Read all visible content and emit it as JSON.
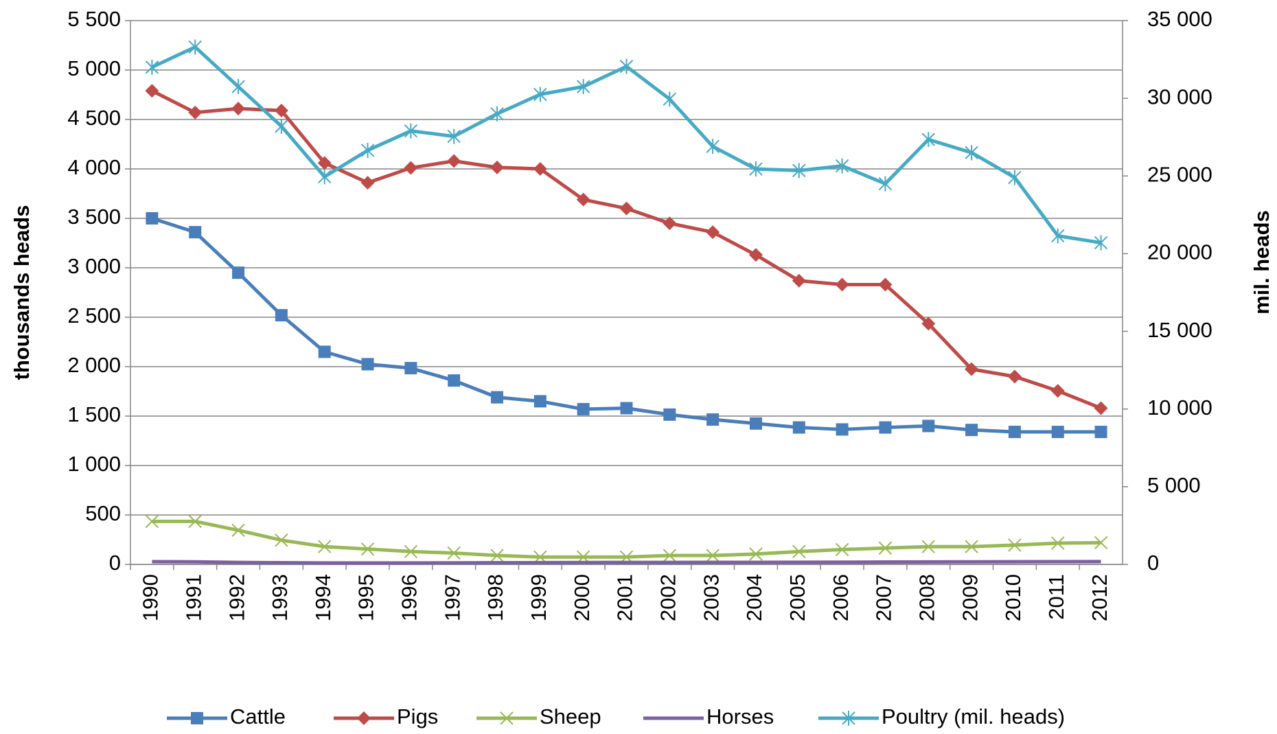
{
  "chart_data": {
    "type": "line",
    "categories": [
      "1990",
      "1991",
      "1992",
      "1993",
      "1994",
      "1995",
      "1996",
      "1997",
      "1998",
      "1999",
      "2000",
      "2001",
      "2002",
      "2003",
      "2004",
      "2005",
      "2006",
      "2007",
      "2008",
      "2009",
      "2010",
      "2011",
      "2012"
    ],
    "ylabel": "thousands heads",
    "y2label": "mil. heads",
    "ylim": [
      0,
      5500
    ],
    "yticks": [
      0,
      500,
      {
        "value": 1000,
        "label": "1 000"
      },
      {
        "value": 1500,
        "label": "1 500"
      },
      {
        "value": 2000,
        "label": "2 000"
      },
      {
        "value": 2500,
        "label": "2 500"
      },
      {
        "value": 3000,
        "label": "3 000"
      },
      {
        "value": 3500,
        "label": "3 500"
      },
      {
        "value": 4000,
        "label": "4 000"
      },
      {
        "value": 4500,
        "label": "4 500"
      },
      {
        "value": 5000,
        "label": "5 000"
      },
      {
        "value": 5500,
        "label": "5 500"
      }
    ],
    "y2lim": [
      0,
      35000
    ],
    "y2ticks": [
      0,
      {
        "value": 5000,
        "label": "5 000"
      },
      {
        "value": 10000,
        "label": "10 000"
      },
      {
        "value": 15000,
        "label": "15 000"
      },
      {
        "value": 20000,
        "label": "20 000"
      },
      {
        "value": 25000,
        "label": "25 000"
      },
      {
        "value": 30000,
        "label": "30 000"
      },
      {
        "value": 35000,
        "label": "35 000"
      }
    ],
    "grid": true,
    "legend": "bottom",
    "series": [
      {
        "name": "Cattle",
        "color": "#4a7ebb",
        "marker": "square",
        "values": [
          3500,
          3360,
          2950,
          2520,
          2150,
          2025,
          1985,
          1860,
          1690,
          1650,
          1570,
          1580,
          1515,
          1465,
          1425,
          1385,
          1365,
          1385,
          1400,
          1360,
          1340,
          1340,
          1340
        ]
      },
      {
        "name": "Pigs",
        "color": "#be4b48",
        "marker": "diamond",
        "values": [
          4790,
          4570,
          4610,
          4590,
          4060,
          3860,
          4010,
          4080,
          4015,
          4000,
          3690,
          3600,
          3450,
          3360,
          3130,
          2870,
          2830,
          2830,
          2435,
          1975,
          1900,
          1755,
          1580
        ]
      },
      {
        "name": "Sheep",
        "color": "#98b954",
        "marker": "x",
        "values": [
          435,
          435,
          345,
          245,
          180,
          155,
          130,
          115,
          90,
          75,
          75,
          75,
          90,
          90,
          105,
          130,
          150,
          165,
          180,
          180,
          195,
          215,
          220
        ]
      },
      {
        "name": "Horses",
        "color": "#7d60a0",
        "marker": "none",
        "values": [
          28,
          26,
          20,
          17,
          15,
          15,
          15,
          16,
          17,
          18,
          19,
          20,
          20,
          21,
          21,
          22,
          23,
          24,
          25,
          26,
          27,
          28,
          29
        ]
      },
      {
        "name": "Poultry (mil. heads)",
        "color": "#46aac5",
        "marker": "asterisk",
        "axis": "y2",
        "values": [
          32000,
          33300,
          30750,
          28200,
          24950,
          26650,
          27900,
          27550,
          29000,
          30250,
          30750,
          32050,
          29950,
          26900,
          25450,
          25350,
          25650,
          24500,
          27350,
          26500,
          24900,
          21150,
          20700
        ]
      }
    ]
  }
}
